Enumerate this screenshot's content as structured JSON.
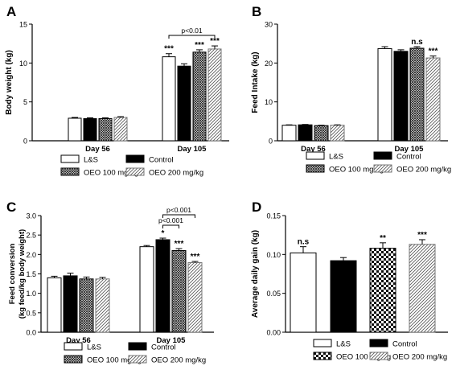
{
  "chart_data": [
    {
      "panel_letter": "A",
      "type": "bar",
      "ylabel": "Body weight (kg)",
      "ylim": [
        0,
        15
      ],
      "yticks": [
        "0",
        "5",
        "10",
        "15"
      ],
      "groups": [
        "Day 56",
        "Day 105"
      ],
      "series": [
        {
          "name": "L&S",
          "values": [
            2.9,
            10.8
          ],
          "errors": [
            0.1,
            0.4
          ],
          "marks": [
            "",
            "***"
          ]
        },
        {
          "name": "Control",
          "values": [
            2.85,
            9.6
          ],
          "errors": [
            0.1,
            0.3
          ],
          "marks": [
            "",
            ""
          ]
        },
        {
          "name": "OEO 100 mg/kg",
          "values": [
            2.85,
            11.4
          ],
          "errors": [
            0.1,
            0.3
          ],
          "marks": [
            "",
            "***"
          ]
        },
        {
          "name": "OEO 200 mg/kg",
          "values": [
            3.0,
            11.8
          ],
          "errors": [
            0.1,
            0.4
          ],
          "marks": [
            "",
            "***"
          ]
        }
      ],
      "brackets": [
        {
          "group": 1,
          "from": 0,
          "to": 3,
          "label": "p<0.01"
        }
      ]
    },
    {
      "panel_letter": "B",
      "type": "bar",
      "ylabel": "Feed Intake (kg)",
      "ylim": [
        0,
        30
      ],
      "yticks": [
        "0",
        "10",
        "20",
        "30"
      ],
      "groups": [
        "Day 56",
        "Day 105"
      ],
      "series": [
        {
          "name": "L&S",
          "values": [
            4.0,
            23.7
          ],
          "errors": [
            0.1,
            0.5
          ],
          "marks": [
            "",
            ""
          ]
        },
        {
          "name": "Control",
          "values": [
            4.1,
            23.0
          ],
          "errors": [
            0.1,
            0.4
          ],
          "marks": [
            "",
            ""
          ]
        },
        {
          "name": "OEO 100 mg/kg",
          "values": [
            3.9,
            23.8
          ],
          "errors": [
            0.1,
            0.4
          ],
          "marks": [
            "",
            "n.s"
          ]
        },
        {
          "name": "OEO 200 mg/kg",
          "values": [
            4.0,
            21.3
          ],
          "errors": [
            0.1,
            0.5
          ],
          "marks": [
            "",
            "***"
          ]
        }
      ],
      "brackets": []
    },
    {
      "panel_letter": "C",
      "type": "bar",
      "ylabel": "Feed conversion",
      "ylabel2": "(kg feed/kg body weight)",
      "ylim": [
        0,
        3.0
      ],
      "yticks": [
        "0.0",
        "0.5",
        "1.0",
        "1.5",
        "2.0",
        "2.5",
        "3.0"
      ],
      "groups": [
        "Day 56",
        "Day 105"
      ],
      "series": [
        {
          "name": "L&S",
          "values": [
            1.4,
            2.2
          ],
          "errors": [
            0.04,
            0.03
          ],
          "marks": [
            "",
            ""
          ]
        },
        {
          "name": "Control",
          "values": [
            1.45,
            2.38
          ],
          "errors": [
            0.07,
            0.04
          ],
          "marks": [
            "",
            "*"
          ]
        },
        {
          "name": "OEO 100 mg/kg",
          "values": [
            1.37,
            2.1
          ],
          "errors": [
            0.05,
            0.05
          ],
          "marks": [
            "",
            "***"
          ]
        },
        {
          "name": "OEO 200 mg/kg",
          "values": [
            1.37,
            1.79
          ],
          "errors": [
            0.04,
            0.03
          ],
          "marks": [
            "",
            "***"
          ]
        }
      ],
      "brackets": [
        {
          "group": 1,
          "from": 1,
          "to": 3,
          "label": "p<0.001",
          "level": 1
        },
        {
          "group": 1,
          "from": 1,
          "to": 2,
          "label": "p<0.001",
          "level": 0
        }
      ]
    },
    {
      "panel_letter": "D",
      "type": "bar",
      "ylabel": "Average daily gain (kg)",
      "ylim": [
        0,
        0.15
      ],
      "yticks": [
        "0.00",
        "0.05",
        "0.10",
        "0.15"
      ],
      "categories": [
        "L&S",
        "Control",
        "OEO 100 mg/kg",
        "OEO 200 mg/kg"
      ],
      "values": [
        0.102,
        0.092,
        0.108,
        0.113
      ],
      "errors": [
        0.008,
        0.004,
        0.007,
        0.006
      ],
      "marks": [
        "n.s",
        "",
        "**",
        "***"
      ]
    }
  ],
  "legend": [
    "L&S",
    "Control",
    "OEO 100 mg/kg",
    "OEO 200 mg/kg"
  ],
  "legend_D": [
    "L&S",
    "Control",
    "OEO 100 mg/kg",
    "OEO 200 mg/kg"
  ]
}
